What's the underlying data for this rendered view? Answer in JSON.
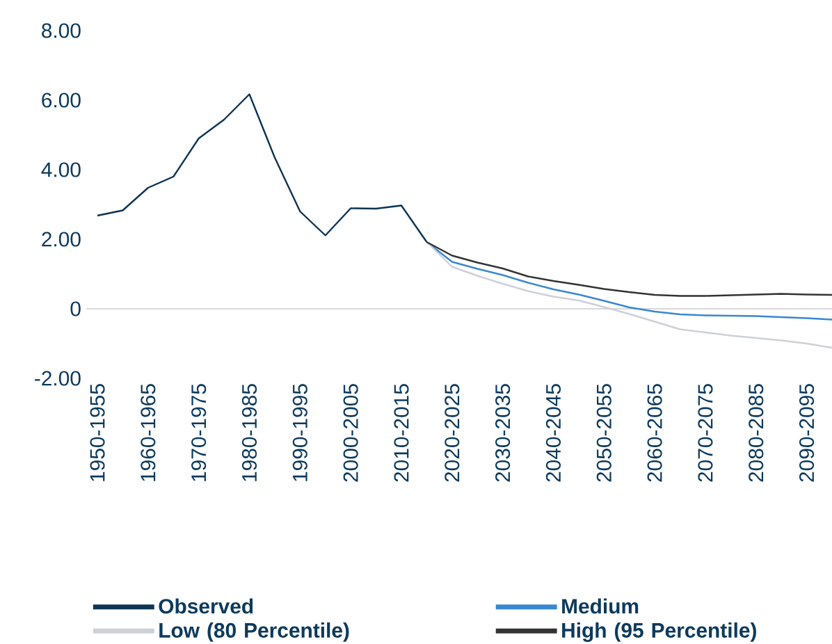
{
  "chart_data": {
    "type": "line",
    "categories": [
      "1950-1955",
      null,
      "1960-1965",
      null,
      "1970-1975",
      null,
      "1980-1985",
      null,
      "1990-1995",
      null,
      "2000-2005",
      null,
      "2010-2015",
      null,
      "2020-2025",
      null,
      "2030-2035",
      null,
      "2040-2045",
      null,
      "2050-2055",
      null,
      "2060-2065",
      null,
      "2070-2075",
      null,
      "2080-2085",
      null,
      "2090-2095",
      null
    ],
    "series": [
      {
        "name": "Observed",
        "color": "#0d3453",
        "values": [
          2.68,
          2.83,
          3.48,
          3.8,
          4.9,
          5.44,
          6.17,
          4.35,
          2.8,
          2.11,
          2.89,
          2.88,
          2.97,
          1.92,
          null,
          null,
          null,
          null,
          null,
          null,
          null,
          null,
          null,
          null,
          null,
          null,
          null,
          null,
          null,
          null
        ]
      },
      {
        "name": "Medium",
        "color": "#3a87d0",
        "values": [
          null,
          null,
          null,
          null,
          null,
          null,
          null,
          null,
          null,
          null,
          null,
          null,
          null,
          1.92,
          1.35,
          1.15,
          0.97,
          0.75,
          0.56,
          0.41,
          0.23,
          0.04,
          -0.08,
          -0.16,
          -0.19,
          -0.2,
          -0.21,
          -0.24,
          -0.27,
          -0.31
        ]
      },
      {
        "name": "Low (80 Percentile)",
        "color": "#cdd0d9",
        "values": [
          null,
          null,
          null,
          null,
          null,
          null,
          null,
          null,
          null,
          null,
          null,
          null,
          null,
          1.92,
          1.21,
          0.95,
          0.72,
          0.51,
          0.35,
          0.24,
          0.05,
          -0.15,
          -0.37,
          -0.59,
          -0.68,
          -0.77,
          -0.84,
          -0.91,
          -1.0,
          -1.12
        ]
      },
      {
        "name": "High (95 Percentile)",
        "color": "#333333",
        "values": [
          null,
          null,
          null,
          null,
          null,
          null,
          null,
          null,
          null,
          null,
          null,
          null,
          null,
          1.92,
          1.53,
          1.33,
          1.16,
          0.93,
          0.8,
          0.69,
          0.57,
          0.48,
          0.4,
          0.37,
          0.37,
          0.39,
          0.41,
          0.43,
          0.41,
          0.4
        ]
      }
    ],
    "ylim": [
      -2,
      8
    ],
    "yticks": [
      {
        "value": -2,
        "label": "-2.00"
      },
      0,
      {
        "value": 2,
        "label": "2.00"
      },
      {
        "value": 4,
        "label": "4.00"
      },
      {
        "value": 6,
        "label": "6.00"
      },
      {
        "value": 8,
        "label": "8.00"
      }
    ],
    "ref_lines": [
      {
        "axis": "y",
        "value": 0,
        "color": "#d9d9d9"
      }
    ],
    "grid": false,
    "marker": "none",
    "line_style": "solid",
    "legend": "bottom"
  }
}
